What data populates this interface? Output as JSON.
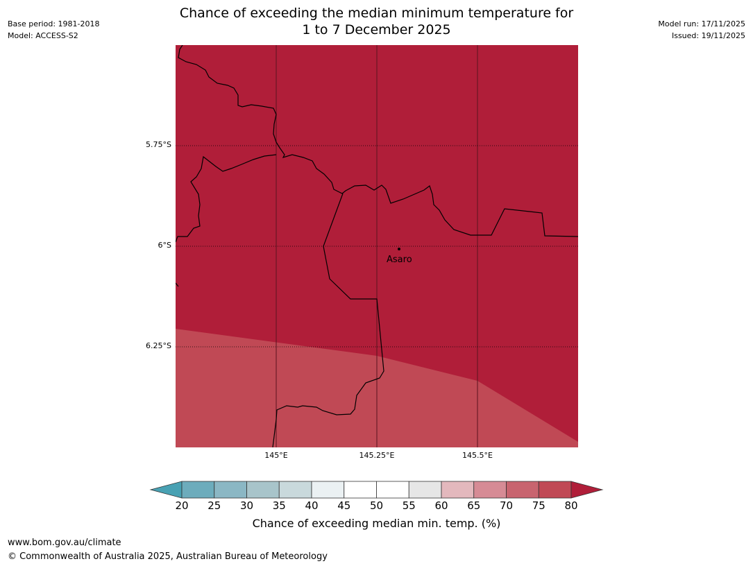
{
  "header": {
    "base_period": "Base period: 1981-2018",
    "model": "Model: ACCESS-S2",
    "model_run": "Model run: 17/11/2025",
    "issued": "Issued: 19/11/2025",
    "title_line1": "Chance of exceeding the median minimum temperature for",
    "title_line2": "1 to 7 December 2025"
  },
  "map": {
    "lat_labels": [
      "5.75°S",
      "6°S",
      "6.25°S"
    ],
    "lon_labels": [
      "145°E",
      "145.25°E",
      "145.5°E"
    ],
    "place": {
      "name": "Asaro",
      "lon": 145.28,
      "lat": -6.01
    },
    "colors": {
      "above_80": "#b01e39",
      "range_75_80": "#c04955",
      "border": "#000000"
    }
  },
  "colorbar": {
    "ticks": [
      "20",
      "25",
      "30",
      "35",
      "40",
      "45",
      "50",
      "55",
      "60",
      "65",
      "70",
      "75",
      "80"
    ],
    "colors": [
      "#48a1b3",
      "#6dacbc",
      "#8bb7c4",
      "#a8c4ca",
      "#c9d9dc",
      "#ebf1f3",
      "#ffffff",
      "#ffffff",
      "#e6e6e6",
      "#e3b8bd",
      "#d68b95",
      "#c8646f",
      "#c04955",
      "#b01e39"
    ],
    "label": "Chance of exceeding median min. temp. (%)"
  },
  "footer": {
    "url": "www.bom.gov.au/climate",
    "copyright": "© Commonwealth of Australia 2025, Australian Bureau of Meteorology"
  }
}
